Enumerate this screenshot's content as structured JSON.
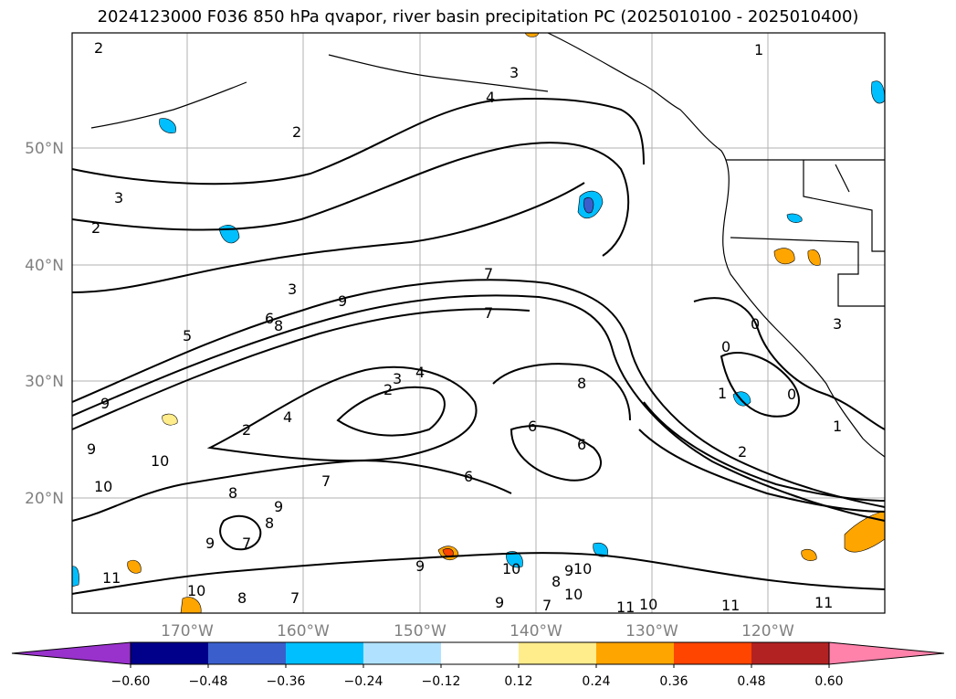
{
  "title": "2024123000 F036 850 hPa qvapor, river basin precipitation PC (2025010100 - 2025010400)",
  "lat_labels": [
    "50°N",
    "40°N",
    "30°N",
    "20°N"
  ],
  "lon_labels": [
    "170°W",
    "160°W",
    "150°W",
    "140°W",
    "130°W",
    "120°W"
  ],
  "colorbar": {
    "ticks": [
      "−0.60",
      "−0.48",
      "−0.36",
      "−0.24",
      "−0.12",
      "0.12",
      "0.24",
      "0.36",
      "0.48",
      "0.60"
    ],
    "colors": [
      "#9932cc",
      "#00008b",
      "#3a5fcd",
      "#00bfff",
      "#b0e2ff",
      "#ffffff",
      "#ffec8b",
      "#ffa500",
      "#ff4500",
      "#b22222",
      "#ff82ab"
    ]
  },
  "contour_labels": [
    "2",
    "2",
    "1",
    "3",
    "4",
    "2",
    "3",
    "2",
    "3",
    "9",
    "5",
    "6",
    "8",
    "7",
    "7",
    "9",
    "2",
    "3",
    "4",
    "4",
    "7",
    "9",
    "10",
    "10",
    "11",
    "10",
    "9",
    "8",
    "9",
    "8",
    "7",
    "9",
    "8",
    "7",
    "6",
    "6",
    "8",
    "6",
    "9",
    "8",
    "10",
    "9",
    "7",
    "10",
    "10",
    "11",
    "11",
    "10",
    "11",
    "0",
    "0",
    "0",
    "2",
    "1",
    "3",
    "1"
  ],
  "legend": {
    "lower": "−0.60",
    "upper": "0.60"
  }
}
